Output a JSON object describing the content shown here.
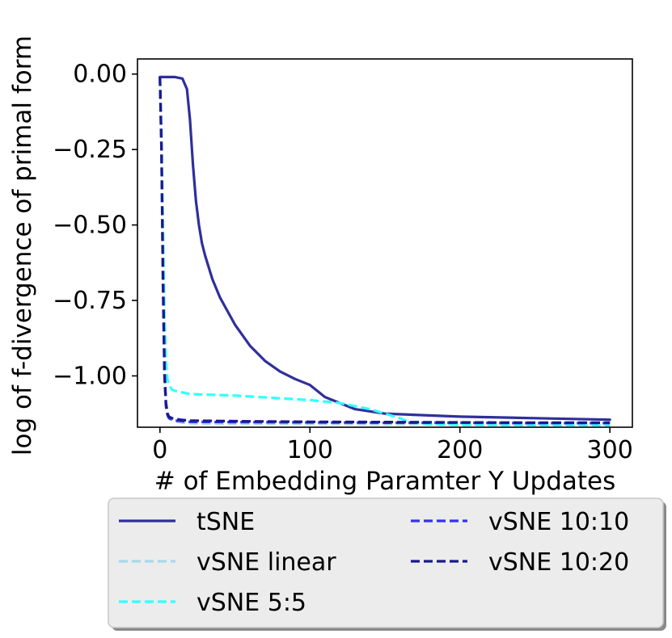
{
  "chart_data": {
    "type": "line",
    "title": "",
    "xlabel": "# of Embedding Paramter Y Updates",
    "ylabel": "log of f-divergence of primal form",
    "xlim": [
      -15,
      315
    ],
    "ylim": [
      -1.17,
      0.05
    ],
    "xticks": [
      0,
      100,
      200,
      300
    ],
    "xtick_labels": [
      "0",
      "100",
      "200",
      "300"
    ],
    "yticks": [
      0.0,
      -0.25,
      -0.5,
      -0.75,
      -1.0
    ],
    "ytick_labels": [
      "0.00",
      "−0.25",
      "−0.50",
      "−0.75",
      "−1.00"
    ],
    "grid": false,
    "legend": {
      "position": "below",
      "columns": 2
    },
    "series": [
      {
        "name": "tSNE",
        "color": "#2f2f9a",
        "dash": "solid",
        "x": [
          0,
          5,
          10,
          15,
          18,
          20,
          22,
          24,
          26,
          28,
          30,
          35,
          40,
          50,
          60,
          70,
          80,
          90,
          100,
          105,
          110,
          120,
          130,
          150,
          200,
          250,
          300
        ],
        "y": [
          -0.01,
          -0.01,
          -0.01,
          -0.015,
          -0.05,
          -0.15,
          -0.3,
          -0.42,
          -0.5,
          -0.56,
          -0.6,
          -0.68,
          -0.74,
          -0.83,
          -0.9,
          -0.95,
          -0.985,
          -1.01,
          -1.03,
          -1.05,
          -1.07,
          -1.09,
          -1.11,
          -1.125,
          -1.135,
          -1.14,
          -1.145
        ]
      },
      {
        "name": "vSNE linear",
        "color": "#a8d8ea",
        "dash": "dashed",
        "x": [
          0,
          1,
          2,
          3,
          4,
          5,
          6,
          8,
          10,
          15,
          20,
          30,
          50,
          100,
          150,
          200,
          250,
          300
        ],
        "y": [
          -0.01,
          -0.2,
          -0.6,
          -0.95,
          -1.08,
          -1.12,
          -1.135,
          -1.145,
          -1.15,
          -1.155,
          -1.157,
          -1.158,
          -1.158,
          -1.159,
          -1.16,
          -1.16,
          -1.16,
          -1.16
        ]
      },
      {
        "name": "vSNE 5:5",
        "color": "#33ffff",
        "dash": "dashed",
        "x": [
          0,
          1,
          2,
          3,
          4,
          5,
          6,
          8,
          10,
          15,
          20,
          50,
          100,
          120,
          140,
          150,
          160,
          165,
          170,
          180,
          200,
          250,
          300
        ],
        "y": [
          -0.01,
          -0.2,
          -0.5,
          -0.8,
          -0.95,
          -1.01,
          -1.03,
          -1.045,
          -1.05,
          -1.055,
          -1.06,
          -1.065,
          -1.08,
          -1.09,
          -1.11,
          -1.125,
          -1.14,
          -1.15,
          -1.155,
          -1.16,
          -1.162,
          -1.163,
          -1.163
        ]
      },
      {
        "name": "vSNE 10:10",
        "color": "#3333ee",
        "dash": "dashed",
        "x": [
          0,
          1,
          2,
          3,
          4,
          5,
          6,
          8,
          10,
          15,
          20,
          50,
          100,
          150,
          200,
          250,
          300
        ],
        "y": [
          -0.01,
          -0.25,
          -0.7,
          -1.0,
          -1.1,
          -1.13,
          -1.14,
          -1.145,
          -1.148,
          -1.15,
          -1.152,
          -1.153,
          -1.154,
          -1.155,
          -1.155,
          -1.156,
          -1.156
        ]
      },
      {
        "name": "vSNE 10:20",
        "color": "#1a1a8c",
        "dash": "dashed",
        "x": [
          0,
          1,
          2,
          3,
          4,
          5,
          6,
          8,
          10,
          15,
          20,
          50,
          100,
          150,
          200,
          250,
          300
        ],
        "y": [
          -0.01,
          -0.25,
          -0.65,
          -0.98,
          -1.09,
          -1.125,
          -1.135,
          -1.14,
          -1.143,
          -1.146,
          -1.148,
          -1.15,
          -1.152,
          -1.153,
          -1.154,
          -1.155,
          -1.155
        ]
      }
    ]
  }
}
